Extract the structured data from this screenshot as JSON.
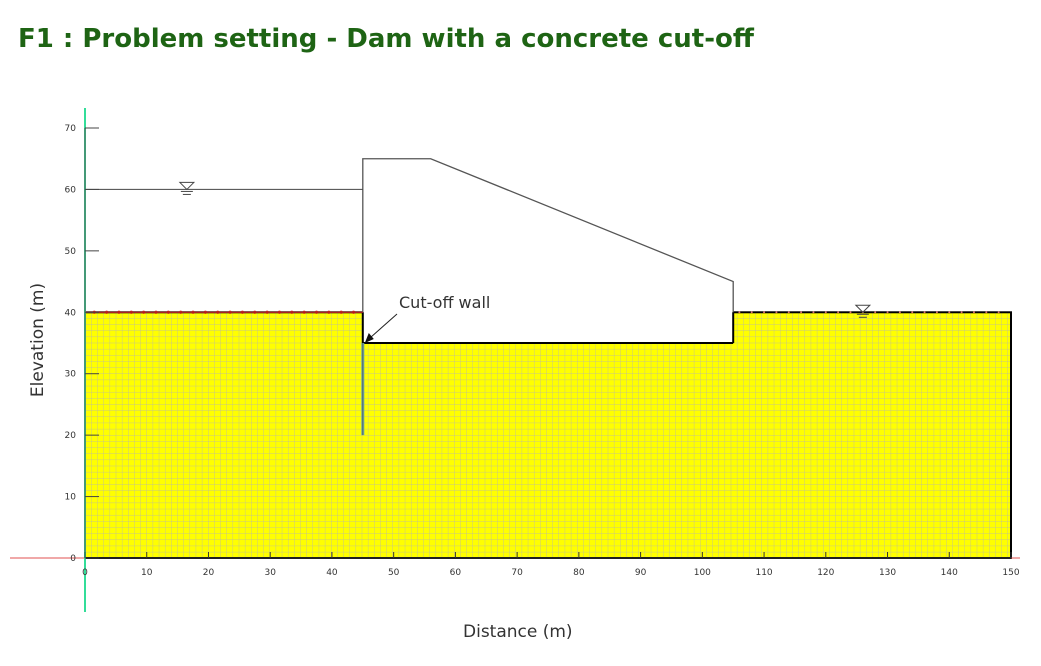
{
  "title": "F1 : Problem setting - Dam with a concrete cut-off",
  "chart_data": {
    "type": "diagram",
    "xlabel": "Distance (m)",
    "ylabel": "Elevation (m)",
    "xlim": [
      0,
      150
    ],
    "ylim": [
      0,
      70
    ],
    "xticks": [
      0,
      10,
      20,
      30,
      40,
      50,
      60,
      70,
      80,
      90,
      100,
      110,
      120,
      130,
      140,
      150
    ],
    "yticks": [
      0,
      10,
      20,
      30,
      40,
      50,
      60,
      70
    ],
    "soil_region": {
      "x": [
        0,
        150
      ],
      "y": [
        0,
        40
      ],
      "mesh": true,
      "fill_color": "#ffff00"
    },
    "dam_outline": [
      [
        45,
        35
      ],
      [
        45,
        65
      ],
      [
        56,
        65
      ],
      [
        105,
        45
      ],
      [
        105,
        35
      ],
      [
        45,
        35
      ]
    ],
    "cutoff_wall": {
      "x": 45,
      "y_top": 35,
      "y_bottom": 20
    },
    "upstream_water": {
      "level": 60,
      "x": [
        0,
        45
      ]
    },
    "downstream_water": {
      "level": 40,
      "x": [
        105,
        150
      ]
    },
    "annotation": {
      "text": "Cut-off wall",
      "target": [
        45,
        35
      ]
    },
    "colors": {
      "soil": "#ffff00",
      "mesh": "#b4b4b4",
      "boundary_nodes": "#cc2222",
      "axis_x": "#e05050",
      "axis_y": "#33dd99",
      "title": "#1e6414"
    }
  }
}
